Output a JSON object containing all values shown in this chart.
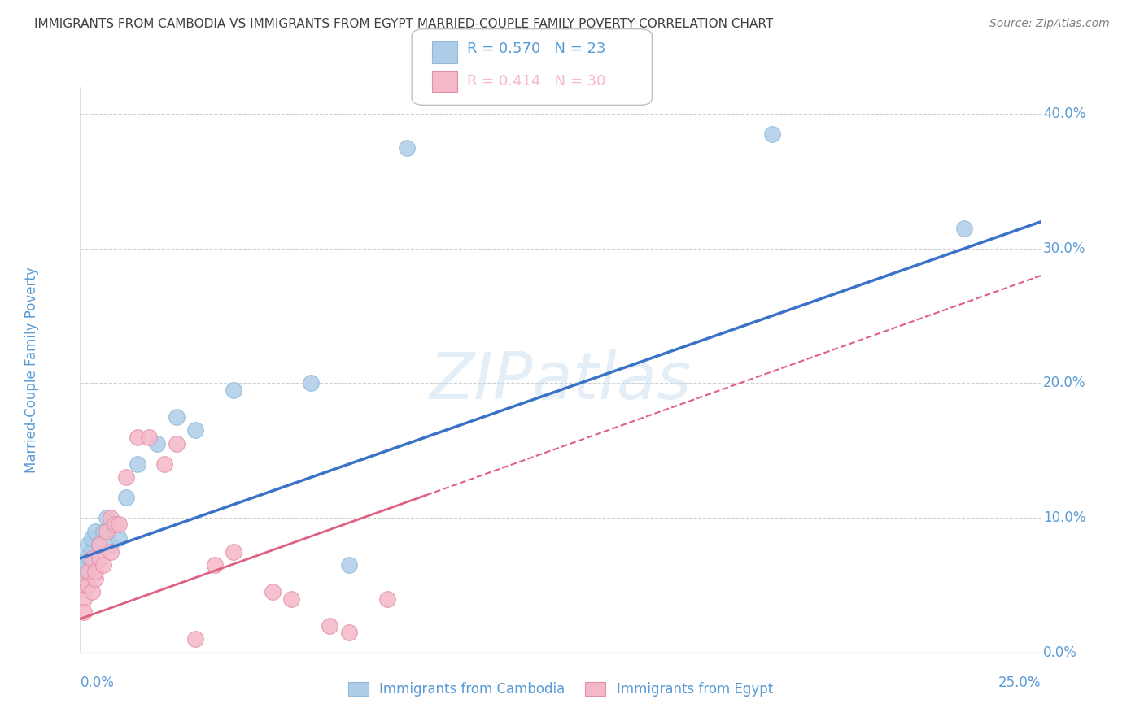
{
  "title": "IMMIGRANTS FROM CAMBODIA VS IMMIGRANTS FROM EGYPT MARRIED-COUPLE FAMILY POVERTY CORRELATION CHART",
  "source": "Source: ZipAtlas.com",
  "ylabel": "Married-Couple Family Poverty",
  "xlim": [
    0.0,
    0.25
  ],
  "ylim": [
    0.0,
    0.42
  ],
  "cambodia_color": "#aecde8",
  "egypt_color": "#f5b8c8",
  "trendline_cambodia_color": "#3a72c7",
  "trendline_egypt_color": "#e06080",
  "legend_r_cambodia": "R = 0.570",
  "legend_n_cambodia": "N = 23",
  "legend_r_egypt": "R = 0.414",
  "legend_n_egypt": "N = 30",
  "legend_label_cambodia": "Immigrants from Cambodia",
  "legend_label_egypt": "Immigrants from Egypt",
  "cambodia_x": [
    0.001,
    0.001,
    0.002,
    0.002,
    0.003,
    0.003,
    0.004,
    0.005,
    0.006,
    0.007,
    0.008,
    0.01,
    0.012,
    0.015,
    0.02,
    0.025,
    0.03,
    0.04,
    0.06,
    0.07,
    0.085,
    0.18,
    0.23
  ],
  "cambodia_y": [
    0.062,
    0.068,
    0.072,
    0.08,
    0.075,
    0.085,
    0.09,
    0.08,
    0.09,
    0.1,
    0.08,
    0.085,
    0.115,
    0.14,
    0.155,
    0.175,
    0.165,
    0.195,
    0.2,
    0.065,
    0.375,
    0.385,
    0.315
  ],
  "egypt_x": [
    0.001,
    0.001,
    0.001,
    0.002,
    0.002,
    0.003,
    0.003,
    0.004,
    0.004,
    0.005,
    0.005,
    0.006,
    0.007,
    0.008,
    0.008,
    0.009,
    0.01,
    0.012,
    0.015,
    0.018,
    0.022,
    0.025,
    0.03,
    0.035,
    0.04,
    0.05,
    0.055,
    0.065,
    0.07,
    0.08
  ],
  "egypt_y": [
    0.04,
    0.05,
    0.03,
    0.05,
    0.06,
    0.045,
    0.07,
    0.055,
    0.06,
    0.07,
    0.08,
    0.065,
    0.09,
    0.1,
    0.075,
    0.095,
    0.095,
    0.13,
    0.16,
    0.16,
    0.14,
    0.155,
    0.01,
    0.065,
    0.075,
    0.045,
    0.04,
    0.02,
    0.015,
    0.04
  ],
  "trendline_cam_x0": 0.0,
  "trendline_cam_y0": 0.07,
  "trendline_cam_x1": 0.25,
  "trendline_cam_y1": 0.32,
  "trendline_egy_x0": 0.0,
  "trendline_egy_y0": 0.025,
  "trendline_egy_x1": 0.25,
  "trendline_egy_y1": 0.28,
  "yticks": [
    0.0,
    0.1,
    0.2,
    0.3,
    0.4
  ],
  "ytick_labels": [
    "0.0%",
    "10.0%",
    "20.0%",
    "30.0%",
    "40.0%"
  ],
  "watermark": "ZIPatlas",
  "background_color": "#ffffff",
  "grid_color": "#d0d0d0",
  "axis_color": "#5a9bd5",
  "title_color": "#404040",
  "source_color": "#808080"
}
